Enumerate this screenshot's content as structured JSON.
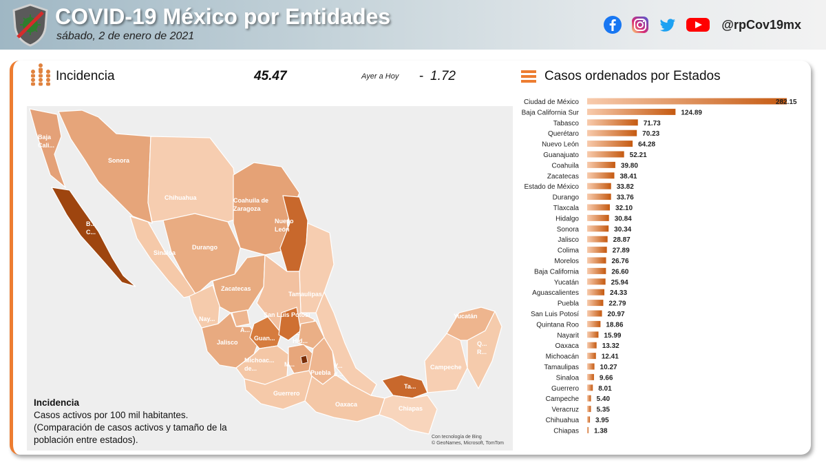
{
  "header": {
    "title": "COVID-19 México por Entidades",
    "date": "sábado, 2 de enero de 2021",
    "handle": "@rpCov19mx",
    "social_icons": [
      "facebook-icon",
      "instagram-icon",
      "twitter-icon",
      "youtube-icon"
    ]
  },
  "incidence": {
    "label": "Incidencia",
    "value": "45.47",
    "compare_label": "Ayer a Hoy",
    "delta_sign": "-",
    "delta_value": "1.72"
  },
  "ranking_title": "Casos ordenados por Estados",
  "legend": {
    "title": "Incidencia",
    "line1": "Casos activos por 100 mil habitantes.",
    "line2": "(Comparación de casos activos y tamaño de la población entre estados)."
  },
  "map_credit": {
    "line1": "Con tecnología de Bing",
    "line2": "© GeoNames, Microsoft, TomTom"
  },
  "map_labels": [
    "Baja Cali...",
    "B... C...",
    "Sonora",
    "Chihuahua",
    "Coahuila de Zaragoza",
    "Nuevo León",
    "Sinaloa",
    "Durango",
    "Zacatecas",
    "Tamaulipas",
    "Nay...",
    "A...",
    "San Luis Potosí",
    "Guan...",
    "Jalisco",
    "Hid...",
    "Michoac... de...",
    "M...",
    "Puebla",
    "V... d...",
    "Guerrero",
    "Oaxaca",
    "Ta...",
    "Chiapas",
    "Campeche",
    "Yucatán",
    "Q... R..."
  ],
  "colors": {
    "accent": "#ed7d31",
    "bar_dark": "#c55a11",
    "bar_light": "#f8cbad",
    "map_base": "#f3c9a8",
    "map_dark": "#8b3a0f"
  },
  "chart_data": {
    "type": "bar",
    "orientation": "horizontal",
    "title": "Casos ordenados por Estados",
    "categories": [
      "Ciudad de México",
      "Baja California Sur",
      "Tabasco",
      "Querétaro",
      "Nuevo León",
      "Guanajuato",
      "Coahuila",
      "Zacatecas",
      "Estado de México",
      "Durango",
      "Tlaxcala",
      "Hidalgo",
      "Sonora",
      "Jalisco",
      "Colima",
      "Morelos",
      "Baja California",
      "Yucatán",
      "Aguascalientes",
      "Puebla",
      "San Luis Potosí",
      "Quintana Roo",
      "Nayarit",
      "Oaxaca",
      "Michoacán",
      "Tamaulipas",
      "Sinaloa",
      "Guerrero",
      "Campeche",
      "Veracruz",
      "Chihuahua",
      "Chiapas"
    ],
    "values": [
      282.15,
      124.89,
      71.73,
      70.23,
      64.28,
      52.21,
      39.8,
      38.41,
      33.82,
      33.76,
      32.1,
      30.84,
      30.34,
      28.87,
      27.89,
      26.76,
      26.6,
      25.94,
      24.33,
      22.79,
      20.97,
      18.86,
      15.99,
      13.32,
      12.41,
      10.27,
      9.66,
      8.01,
      5.4,
      5.35,
      3.95,
      1.38
    ],
    "value_labels": [
      "282.15",
      "124.89",
      "71.73",
      "70.23",
      "64.28",
      "52.21",
      "39.80",
      "38.41",
      "33.82",
      "33.76",
      "32.10",
      "30.84",
      "30.34",
      "28.87",
      "27.89",
      "26.76",
      "26.60",
      "25.94",
      "24.33",
      "22.79",
      "20.97",
      "18.86",
      "15.99",
      "13.32",
      "12.41",
      "10.27",
      "9.66",
      "8.01",
      "5.40",
      "5.35",
      "3.95",
      "1.38"
    ],
    "xlim": [
      0,
      282.15
    ]
  }
}
